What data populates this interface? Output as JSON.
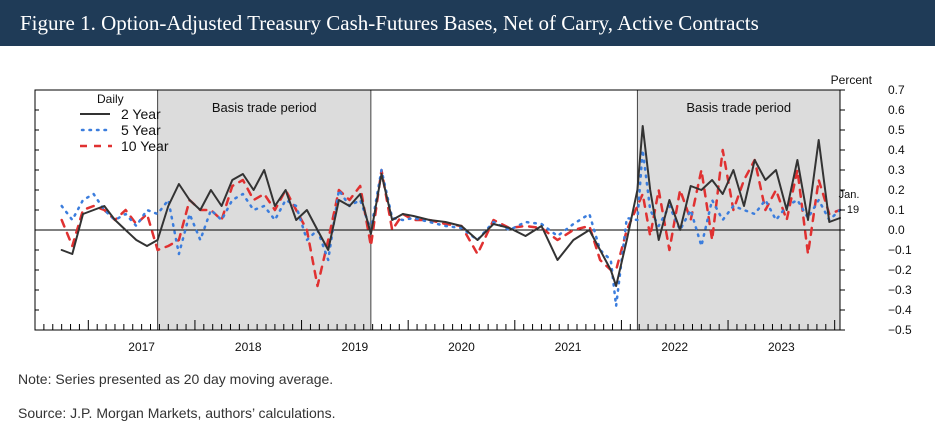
{
  "figure_title": "Figure 1. Option-Adjusted Treasury Cash-Futures Bases, Net of Carry, Active Contracts",
  "note": "Note: Series presented as 20 day moving average.",
  "source": "Source: J.P. Morgan Markets, authors’ calculations.",
  "chart_data": {
    "type": "line",
    "title": "Option-Adjusted Treasury Cash-Futures Bases, Net of Carry, Active Contracts",
    "ylabel": "Percent",
    "xlabel": "",
    "ylim": [
      -0.5,
      0.7
    ],
    "yticks": [
      "0.7",
      "0.6",
      "0.5",
      "0.4",
      "0.3",
      "0.2",
      "0.1",
      "0.0",
      "−0.1",
      "−0.2",
      "−0.3",
      "−0.4",
      "−0.5"
    ],
    "xlim": [
      2016.5,
      2024.05
    ],
    "xticks": [
      "2017",
      "2018",
      "2019",
      "2020",
      "2021",
      "2022",
      "2023"
    ],
    "legend_title": "Daily",
    "legend_position": "top-left",
    "shaded_regions": [
      {
        "label": "Basis trade period",
        "start": 2017.65,
        "end": 2019.65
      },
      {
        "label": "Basis trade period",
        "start": 2022.15,
        "end": 2024.05
      }
    ],
    "annotation_line1": "Jan.",
    "annotation_line2": "19",
    "series": [
      {
        "name": "2 Year",
        "style": "solid",
        "color": "#333333",
        "x": [
          2016.75,
          2016.85,
          2016.95,
          2017.05,
          2017.15,
          2017.25,
          2017.35,
          2017.45,
          2017.55,
          2017.65,
          2017.75,
          2017.85,
          2017.95,
          2018.05,
          2018.15,
          2018.25,
          2018.35,
          2018.45,
          2018.55,
          2018.65,
          2018.75,
          2018.85,
          2018.95,
          2019.05,
          2019.15,
          2019.25,
          2019.35,
          2019.45,
          2019.55,
          2019.65,
          2019.75,
          2019.85,
          2019.95,
          2020.05,
          2020.2,
          2020.35,
          2020.5,
          2020.65,
          2020.8,
          2020.95,
          2021.1,
          2021.25,
          2021.4,
          2021.55,
          2021.7,
          2021.8,
          2021.9,
          2021.95,
          2022.05,
          2022.15,
          2022.2,
          2022.27,
          2022.35,
          2022.45,
          2022.55,
          2022.65,
          2022.75,
          2022.85,
          2022.95,
          2023.05,
          2023.15,
          2023.25,
          2023.35,
          2023.45,
          2023.55,
          2023.65,
          2023.75,
          2023.85,
          2023.95,
          2024.05
        ],
        "values": [
          -0.1,
          -0.12,
          0.08,
          0.1,
          0.12,
          0.05,
          0.0,
          -0.05,
          -0.08,
          -0.05,
          0.12,
          0.23,
          0.15,
          0.1,
          0.2,
          0.12,
          0.25,
          0.28,
          0.2,
          0.3,
          0.12,
          0.2,
          0.05,
          0.1,
          0.0,
          -0.1,
          0.15,
          0.12,
          0.18,
          -0.02,
          0.28,
          0.05,
          0.08,
          0.07,
          0.05,
          0.04,
          0.02,
          -0.05,
          0.03,
          0.01,
          -0.03,
          0.02,
          -0.15,
          -0.05,
          0.0,
          -0.1,
          -0.2,
          -0.28,
          -0.05,
          0.2,
          0.52,
          0.2,
          -0.05,
          0.15,
          0.0,
          0.22,
          0.2,
          0.25,
          0.18,
          0.3,
          0.12,
          0.35,
          0.25,
          0.3,
          0.1,
          0.35,
          0.05,
          0.45,
          0.04,
          0.06
        ]
      },
      {
        "name": "5 Year",
        "style": "dotted",
        "color": "#3b7ddd",
        "x": [
          2016.75,
          2016.85,
          2016.95,
          2017.05,
          2017.15,
          2017.25,
          2017.35,
          2017.45,
          2017.55,
          2017.65,
          2017.75,
          2017.85,
          2017.95,
          2018.05,
          2018.15,
          2018.25,
          2018.35,
          2018.45,
          2018.55,
          2018.65,
          2018.75,
          2018.85,
          2018.95,
          2019.05,
          2019.15,
          2019.25,
          2019.35,
          2019.45,
          2019.55,
          2019.65,
          2019.75,
          2019.85,
          2019.95,
          2020.05,
          2020.2,
          2020.35,
          2020.5,
          2020.65,
          2020.8,
          2020.95,
          2021.1,
          2021.25,
          2021.4,
          2021.55,
          2021.7,
          2021.8,
          2021.9,
          2021.95,
          2022.05,
          2022.15,
          2022.2,
          2022.27,
          2022.35,
          2022.45,
          2022.55,
          2022.65,
          2022.75,
          2022.85,
          2022.95,
          2023.05,
          2023.15,
          2023.25,
          2023.35,
          2023.45,
          2023.55,
          2023.65,
          2023.75,
          2023.85,
          2023.95,
          2024.05
        ],
        "values": [
          0.12,
          0.05,
          0.15,
          0.18,
          0.1,
          0.05,
          0.08,
          0.02,
          0.1,
          0.08,
          0.15,
          -0.12,
          0.08,
          -0.05,
          0.1,
          0.05,
          0.15,
          0.18,
          0.1,
          0.12,
          0.05,
          0.15,
          0.12,
          -0.05,
          0.0,
          -0.15,
          0.2,
          0.12,
          0.15,
          0.0,
          0.3,
          0.06,
          0.05,
          0.06,
          0.04,
          0.02,
          0.01,
          -0.05,
          0.04,
          0.0,
          0.04,
          0.03,
          -0.03,
          0.03,
          0.08,
          -0.1,
          -0.15,
          -0.38,
          0.06,
          0.05,
          0.4,
          0.1,
          0.02,
          0.12,
          0.0,
          0.1,
          -0.08,
          0.15,
          0.05,
          0.12,
          0.1,
          0.08,
          0.15,
          0.05,
          0.12,
          0.15,
          0.06,
          0.15,
          0.05,
          0.1
        ]
      },
      {
        "name": "10 Year",
        "style": "dashed",
        "color": "#e03131",
        "x": [
          2016.75,
          2016.85,
          2016.95,
          2017.05,
          2017.15,
          2017.25,
          2017.35,
          2017.45,
          2017.55,
          2017.65,
          2017.75,
          2017.85,
          2017.95,
          2018.05,
          2018.15,
          2018.25,
          2018.35,
          2018.45,
          2018.55,
          2018.65,
          2018.75,
          2018.85,
          2018.95,
          2019.05,
          2019.15,
          2019.25,
          2019.35,
          2019.45,
          2019.55,
          2019.65,
          2019.75,
          2019.85,
          2019.95,
          2020.05,
          2020.2,
          2020.35,
          2020.5,
          2020.65,
          2020.8,
          2020.95,
          2021.1,
          2021.25,
          2021.4,
          2021.55,
          2021.7,
          2021.8,
          2021.9,
          2021.95,
          2022.05,
          2022.15,
          2022.2,
          2022.27,
          2022.35,
          2022.45,
          2022.55,
          2022.65,
          2022.75,
          2022.85,
          2022.95,
          2023.05,
          2023.15,
          2023.25,
          2023.35,
          2023.45,
          2023.55,
          2023.65,
          2023.75,
          2023.85,
          2023.95,
          2024.05
        ],
        "values": [
          0.05,
          -0.08,
          0.1,
          0.12,
          0.1,
          0.05,
          0.1,
          0.03,
          0.08,
          -0.1,
          -0.08,
          -0.05,
          0.15,
          0.1,
          0.1,
          0.05,
          0.22,
          0.25,
          0.15,
          0.18,
          0.1,
          0.2,
          0.1,
          0.0,
          -0.28,
          -0.05,
          0.2,
          0.15,
          0.22,
          -0.08,
          0.3,
          0.0,
          0.08,
          0.05,
          0.05,
          0.03,
          0.02,
          -0.12,
          0.05,
          0.01,
          0.02,
          0.01,
          -0.05,
          0.0,
          0.02,
          -0.15,
          -0.2,
          -0.2,
          0.0,
          0.12,
          0.18,
          -0.03,
          0.2,
          -0.1,
          0.2,
          0.05,
          0.3,
          -0.05,
          0.4,
          0.1,
          0.25,
          0.35,
          0.1,
          0.2,
          0.05,
          0.3,
          -0.12,
          0.25,
          0.08,
          0.1
        ]
      }
    ]
  }
}
